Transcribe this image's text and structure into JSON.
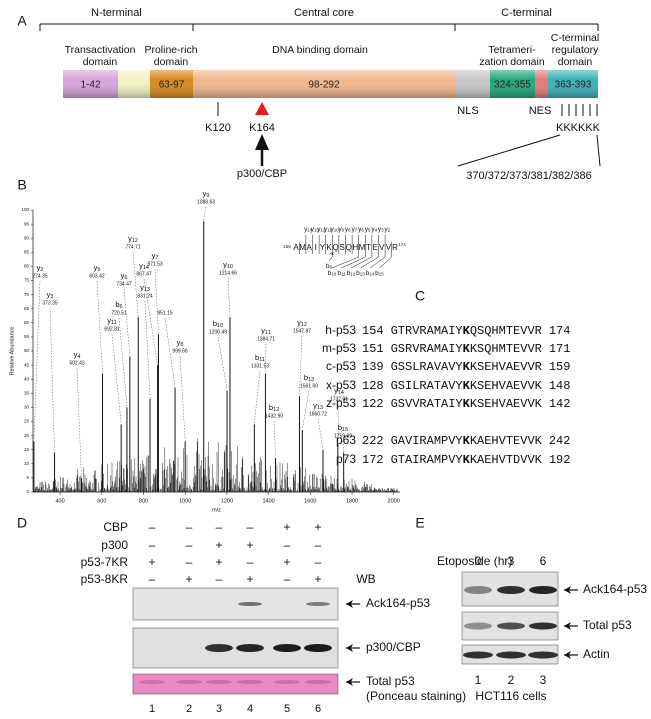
{
  "panel_labels": [
    "A",
    "B",
    "C",
    "D",
    "E"
  ],
  "panel_a": {
    "regions": [
      "N-terminal",
      "Central core",
      "C-terminal"
    ],
    "domains": [
      [
        "Transactivation",
        "domain"
      ],
      [
        "Proline-rich",
        "domain"
      ],
      [
        "DNA binding domain"
      ],
      [
        "Tetrameri-",
        "zation domain"
      ],
      [
        "C-terminal",
        "regulatory",
        "domain"
      ]
    ],
    "segments": [
      "1-42",
      "63-97",
      "98-292",
      "324-355",
      "363-393"
    ],
    "sites": {
      "k120": "K120",
      "k164": "K164",
      "enzyme": "p300/CBP",
      "nls": "NLS",
      "nes": "NES",
      "c_lysines": "KKKKKK",
      "c_positions": "370/372/373/381/382/386"
    }
  },
  "panel_b": {
    "x_label": "m/z",
    "y_label": "Relative Abundance",
    "xlim": [
      270,
      2030
    ],
    "ylim": [
      0,
      100
    ],
    "xticks": [
      400,
      600,
      800,
      1000,
      1200,
      1400,
      1600,
      1800,
      2000
    ],
    "yticks": [
      0,
      5,
      10,
      15,
      20,
      25,
      30,
      35,
      40,
      45,
      50,
      55,
      60,
      65,
      70,
      75,
      80,
      85,
      90,
      95,
      100
    ],
    "peaks": [
      {
        "ion": "y",
        "n": 2,
        "mz": 274.35
      },
      {
        "ion": "y",
        "n": 3,
        "mz": 373.35
      },
      {
        "ion": "y",
        "n": 4,
        "mz": 502.43
      },
      {
        "ion": "y",
        "n": 5,
        "mz": 603.42
      },
      {
        "ion": "b",
        "n": 6,
        "mz": 720.51
      },
      {
        "ion": "y",
        "n": 11,
        "mz": 692.81
      },
      {
        "ion": "y",
        "n": 6,
        "mz": 734.47
      },
      {
        "ion": "y",
        "n": 12,
        "mz": 774.71
      },
      {
        "ion": "y",
        "n": 13,
        "mz": 831.24
      },
      {
        "ion": "y",
        "n": 14,
        "mz": 867.47
      },
      {
        "ion": "y",
        "n": 7,
        "mz": 871.53
      },
      {
        "mz": 951.15
      },
      {
        "ion": "y",
        "n": 8,
        "mz": 999.66
      },
      {
        "ion": "y",
        "n": 9,
        "mz": 1088.63
      },
      {
        "ion": "b",
        "n": 10,
        "mz": 1200.49
      },
      {
        "ion": "y",
        "n": 10,
        "mz": 1214.66
      },
      {
        "ion": "b",
        "n": 11,
        "mz": 1331.53
      },
      {
        "ion": "y",
        "n": 11,
        "mz": 1384.71
      },
      {
        "ion": "b",
        "n": 12,
        "mz": {
          "value": 1432.9,
          "label": "1432.90"
        }
      },
      {
        "ion": "y",
        "n": 12,
        "mz": 1547.87
      },
      {
        "ion": "b",
        "n": 13,
        "mz": {
          "value": 1561.6,
          "label": "1561.60"
        }
      },
      {
        "ion": "y",
        "n": 13,
        "mz": 1660.72
      },
      {
        "ion": "y",
        "n": 14,
        "mz": 1732.01
      },
      {
        "ion": "b",
        "n": 15,
        "mz": 1759.89
      }
    ],
    "peptide": {
      "start": 159,
      "residues": [
        "A",
        "M",
        "A",
        "I",
        "Y",
        "K",
        "Q",
        "S",
        "Q",
        "H",
        "M",
        "T",
        "E",
        "V",
        "V",
        "R"
      ],
      "modification": "Ac",
      "end": 174,
      "y_letter": "y",
      "y_ions": [
        14,
        13,
        12,
        11,
        10,
        9,
        8,
        7,
        6,
        5,
        4,
        3,
        2
      ],
      "b_letter": "b",
      "b_ions": [
        6,
        10,
        11,
        12,
        13,
        14,
        15
      ]
    }
  },
  "panel_c": {
    "rows": [
      {
        "name": "h-p53",
        "start": 154,
        "before": "GTRVRAMAIY",
        "site": "K",
        "after": "QSQHMTEVVR",
        "end": 174
      },
      {
        "name": "m-p53",
        "start": 151,
        "before": "GSRVRAMAIY",
        "site": "K",
        "after": "KSQHMTEVVR",
        "end": 171
      },
      {
        "name": "c-p53",
        "start": 139,
        "before": "GSSLRAVAVY",
        "site": "K",
        "after": "KSEHVAEVVR",
        "end": 159
      },
      {
        "name": "x-p53",
        "start": 128,
        "before": "GSILRATAVY",
        "site": "K",
        "after": "KSEHVAEVVK",
        "end": 148
      },
      {
        "name": "z-p53",
        "start": 122,
        "before": "GSVVRATAIY",
        "site": "K",
        "after": "KSEHVAEVVK",
        "end": 142
      },
      {
        "name": "p63",
        "start": 222,
        "before": "GAVIRAMPVY",
        "site": "K",
        "after": "KAEHVTEVVK",
        "end": 242
      },
      {
        "name": "p73",
        "start": 172,
        "before": "GTAIRAMPVY",
        "site": "K",
        "after": "KAEHVTDVVK",
        "end": 192
      }
    ]
  },
  "panel_d": {
    "conditions": [
      {
        "name": "CBP",
        "signs": [
          "–",
          "–",
          "–",
          "–",
          "+",
          "+"
        ]
      },
      {
        "name": "p300",
        "signs": [
          "–",
          "–",
          "+",
          "+",
          "–",
          "–"
        ]
      },
      {
        "name": "p53-7KR",
        "signs": [
          "+",
          "–",
          "+",
          "–",
          "+",
          "–"
        ]
      },
      {
        "name": "p53-8KR",
        "signs": [
          "–",
          "+",
          "–",
          "+",
          "–",
          "+"
        ]
      }
    ],
    "wb": "WB",
    "blots": [
      "Ack164-p53",
      "p300/CBP",
      "Total p53"
    ],
    "note": "(Ponceau staining)",
    "lanes": [
      1,
      2,
      3,
      4,
      5,
      6
    ]
  },
  "panel_e": {
    "treatment": "Etoposide (hr)",
    "times": [
      0,
      3,
      6
    ],
    "blots": [
      "Ack164-p53",
      "Total p53",
      "Actin"
    ],
    "lanes": [
      1,
      2,
      3
    ],
    "cells": "HCT116 cells"
  }
}
